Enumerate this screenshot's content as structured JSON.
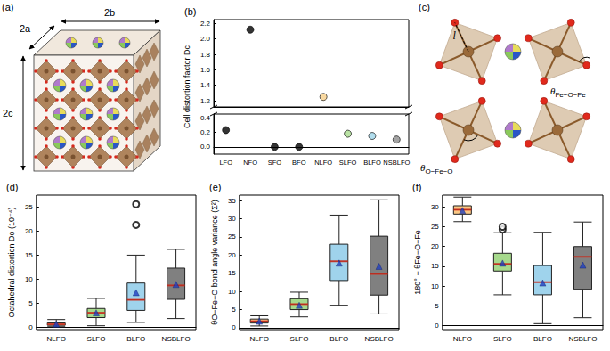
{
  "chart_data": [
    {
      "panel": "(b)",
      "type": "scatter",
      "y_label": "Cell distortion factor Dc",
      "categories": [
        "LFO",
        "NFO",
        "SFO",
        "BFO",
        "NLFO",
        "SLFO",
        "BLFO",
        "NSBLFO"
      ],
      "values": [
        0.23,
        2.12,
        0.0,
        0.0,
        1.25,
        0.18,
        0.15,
        0.1
      ],
      "colors": [
        "#000000",
        "#000000",
        "#000000",
        "#000000",
        "#f7cf8a",
        "#a9dc8e",
        "#9fd6ea",
        "#8c8c8c"
      ],
      "marker": "circle",
      "ylim": [
        -0.1,
        2.25
      ],
      "y_break": [
        0.45,
        1.12
      ],
      "yticks": [
        {
          "value": 0,
          "label": "0.0"
        },
        {
          "value": 0.2,
          "label": "0.2"
        },
        {
          "value": 0.4,
          "label": "0.4"
        },
        {
          "value": 1.2,
          "label": "1.2"
        },
        {
          "value": 1.4,
          "label": "1.4"
        },
        {
          "value": 1.6,
          "label": "1.6"
        },
        {
          "value": 1.8,
          "label": "1.8"
        },
        {
          "value": 2.0,
          "label": "2.0"
        },
        {
          "value": 2.2,
          "label": "2.2"
        }
      ],
      "grid": false
    },
    {
      "panel": "(d)",
      "type": "boxplot",
      "y_label": "Octahedral distortion Do (10⁻⁴)",
      "categories": [
        "NLFO",
        "SLFO",
        "BLFO",
        "NSBLFO"
      ],
      "boxes": [
        [
          0.1,
          0.4,
          0.6,
          0.9,
          1.6
        ],
        [
          0.3,
          2.0,
          3.0,
          3.9,
          6.0
        ],
        [
          1.0,
          3.5,
          5.7,
          9.2,
          15.0
        ],
        [
          1.8,
          5.8,
          8.7,
          12.3,
          16.2
        ]
      ],
      "means": [
        0.65,
        3.0,
        7.2,
        8.9
      ],
      "outliers": [
        [],
        [],
        [
          21.3,
          25.6
        ],
        []
      ],
      "colors": [
        "#f9c784",
        "#a6d98c",
        "#9fd3ec",
        "#808080"
      ],
      "marker": "triangle",
      "ylim": [
        -0.5,
        27.5
      ],
      "yticks": [
        0,
        5,
        10,
        15,
        20,
        25
      ],
      "grid": false
    },
    {
      "panel": "(e)",
      "type": "boxplot",
      "y_label": "θO−Fe−O bond angle variance (Σ²)",
      "categories": [
        "NLFO",
        "SLFO",
        "BLFO",
        "NSBLFO"
      ],
      "boxes": [
        [
          0.5,
          1.3,
          1.8,
          2.4,
          3.3
        ],
        [
          3.0,
          5.0,
          6.5,
          8.0,
          9.8
        ],
        [
          6.2,
          13.0,
          18.3,
          23.0,
          31.0
        ],
        [
          3.8,
          9.0,
          14.8,
          25.2,
          35.2
        ]
      ],
      "means": [
        1.8,
        6.2,
        17.8,
        16.9
      ],
      "outliers": [
        [],
        [],
        [],
        []
      ],
      "colors": [
        "#f9c784",
        "#a6d98c",
        "#9fd3ec",
        "#808080"
      ],
      "marker": "triangle",
      "ylim": [
        -0.5,
        36.5
      ],
      "yticks": [
        0,
        5,
        10,
        15,
        20,
        25,
        30,
        35
      ],
      "grid": false
    },
    {
      "panel": "(f)",
      "type": "boxplot",
      "y_label": "180° − θFe−O−Fe",
      "categories": [
        "NLFO",
        "SLFO",
        "BLFO",
        "NSBLFO"
      ],
      "boxes": [
        [
          26.3,
          28.2,
          29.3,
          30.3,
          32.5
        ],
        [
          7.8,
          13.8,
          15.6,
          18.3,
          23.5
        ],
        [
          0.5,
          7.8,
          11.0,
          15.2,
          23.6
        ],
        [
          2.0,
          9.2,
          17.4,
          20.0,
          26.2
        ]
      ],
      "means": [
        29.1,
        15.8,
        10.8,
        15.3
      ],
      "outliers": [
        [],
        [
          24.3,
          25.0
        ],
        [],
        []
      ],
      "colors": [
        "#f9c784",
        "#a6d98c",
        "#9fd3ec",
        "#808080"
      ],
      "marker": "triangle",
      "ylim": [
        -1,
        33
      ],
      "yticks": [
        0,
        5,
        10,
        15,
        20,
        25,
        30
      ],
      "grid": false
    }
  ],
  "diagrams": [
    {
      "panel": "(a)",
      "labels": [
        "2a",
        "2b",
        "2c"
      ]
    },
    {
      "panel": "(c)",
      "labels": [
        "l",
        "θFe−O−Fe",
        "θO−Fe−O"
      ]
    }
  ]
}
